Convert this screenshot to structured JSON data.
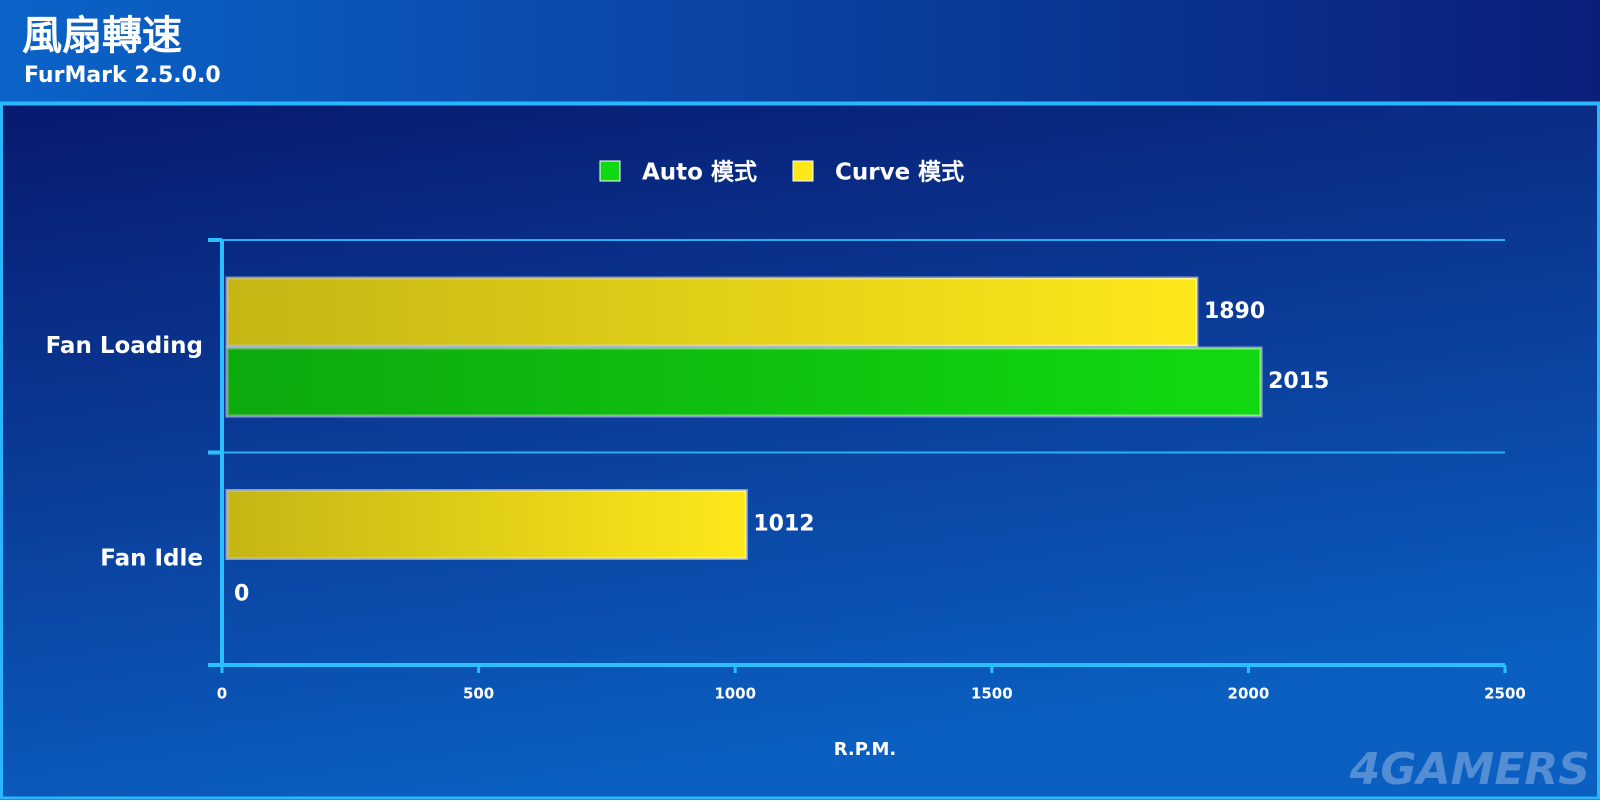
{
  "chart_data": {
    "type": "hbar",
    "title": "風扇轉速",
    "subtitle": "FurMark 2.5.0.0",
    "categories": [
      "Fan Loading",
      "Fan Idle"
    ],
    "series": [
      {
        "name": "Auto 模式",
        "color": "#11d911",
        "values": [
          2015,
          0
        ]
      },
      {
        "name": "Curve 模式",
        "color": "#fde81a",
        "values": [
          1890,
          1012
        ]
      }
    ],
    "xlim": [
      0,
      2500
    ],
    "xticks": [
      0,
      500,
      1000,
      1500,
      2000,
      2500
    ],
    "xlabel": "R.P.M.",
    "legend": "top",
    "watermark": "4GAMERS"
  }
}
